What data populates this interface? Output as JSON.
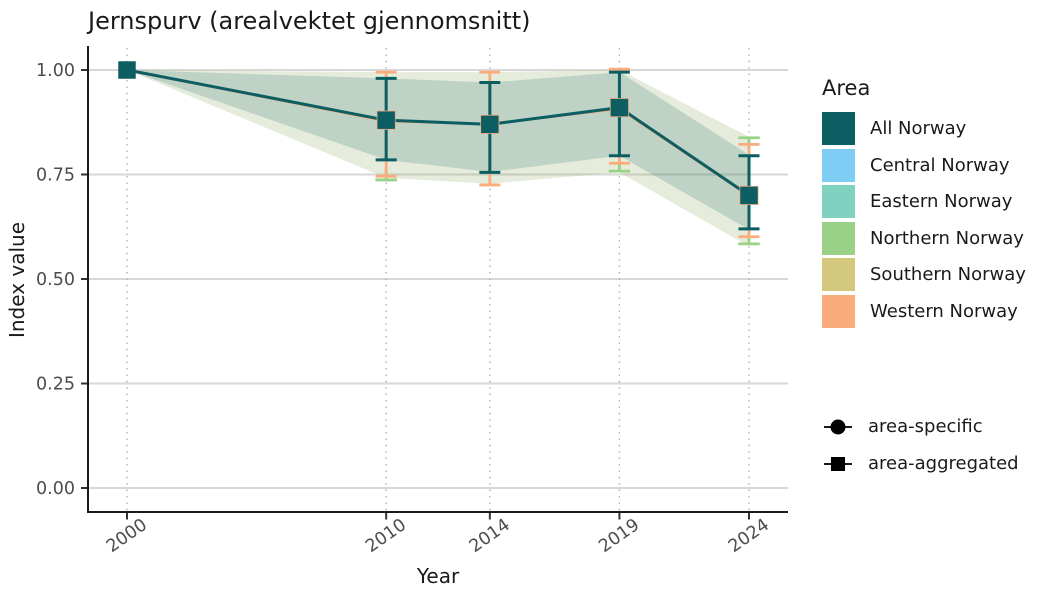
{
  "chart_data": {
    "type": "line",
    "title": "Jernspurv (arealvektet gjennomsnitt)",
    "xlabel": "Year",
    "ylabel": "Index value",
    "x_ticks": [
      2000,
      2010,
      2014,
      2019,
      2024
    ],
    "x_tick_labels": [
      "2000",
      "2010",
      "2014",
      "2019",
      "2024"
    ],
    "y_ticks": [
      0,
      0.25,
      0.5,
      0.75,
      1
    ],
    "y_tick_labels": [
      "0.00",
      "0.25",
      "0.50",
      "0.75",
      "1.00"
    ],
    "grid": {
      "horizontal": "solid",
      "vertical": "dotted"
    },
    "main_series": {
      "name": "All Norway",
      "marker": "square",
      "color": "#0c5e63",
      "x": [
        2000,
        2010,
        2014,
        2019,
        2024
      ],
      "values": [
        1.0,
        0.88,
        0.87,
        0.91,
        0.7
      ],
      "err_low": [
        null,
        0.785,
        0.755,
        0.795,
        0.62
      ],
      "err_high": [
        null,
        0.98,
        0.97,
        0.995,
        0.795
      ]
    },
    "background_series": [
      {
        "name": "Northern Norway",
        "color": "#99d186",
        "caps": [
          {
            "x": 2010,
            "value": 0.737,
            "dir": "up"
          },
          {
            "x": 2019,
            "value": 0.758,
            "dir": "up"
          },
          {
            "x": 2024,
            "value": 0.838,
            "dir": "down"
          },
          {
            "x": 2024,
            "value": 0.584,
            "dir": "up"
          }
        ]
      },
      {
        "name": "Western Norway",
        "color": "#fbac7d",
        "values": [
          1.0,
          0.8775,
          0.871,
          0.9075,
          0.699
        ],
        "err_low": [
          null,
          0.746,
          0.725,
          0.777,
          0.601
        ],
        "err_high": [
          null,
          0.995,
          0.995,
          1.002,
          0.822
        ]
      }
    ],
    "ribbons": [
      {
        "name": "outer-band",
        "color": "rgba(150,175,105,0.24)",
        "upper": [
          1.0,
          0.995,
          0.995,
          1.0,
          0.84
        ],
        "lower": [
          1.0,
          0.742,
          0.728,
          0.755,
          0.578
        ]
      },
      {
        "name": "inner-band",
        "color": "rgba(12,94,99,0.18)",
        "upper": [
          1.0,
          0.98,
          0.97,
          0.995,
          0.797
        ],
        "lower": [
          1.0,
          0.785,
          0.756,
          0.795,
          0.618
        ]
      }
    ],
    "legend_area": {
      "title": "Area",
      "items": [
        {
          "label": "All Norway",
          "color": "#0c5e63"
        },
        {
          "label": "Central Norway",
          "color": "#7ecdf4"
        },
        {
          "label": "Eastern Norway",
          "color": "#7fd2bf"
        },
        {
          "label": "Northern Norway",
          "color": "#99d186"
        },
        {
          "label": "Southern Norway",
          "color": "#d4c87c"
        },
        {
          "label": "Western Norway",
          "color": "#fbac7d"
        }
      ]
    },
    "legend_shape": {
      "items": [
        {
          "label": "area-specific",
          "shape": "circle"
        },
        {
          "label": "area-aggregated",
          "shape": "square"
        }
      ]
    }
  }
}
